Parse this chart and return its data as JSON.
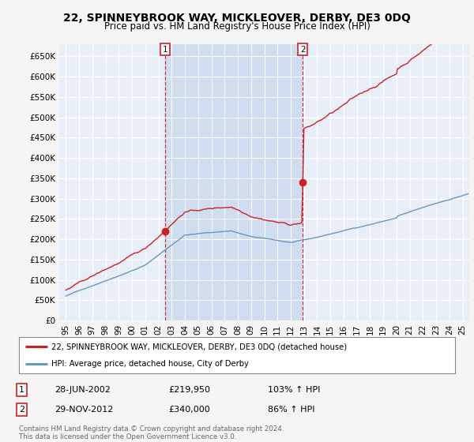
{
  "title": "22, SPINNEYBROOK WAY, MICKLEOVER, DERBY, DE3 0DQ",
  "subtitle": "Price paid vs. HM Land Registry's House Price Index (HPI)",
  "title_fontsize": 10,
  "subtitle_fontsize": 8.5,
  "bg_color": "#f5f5f5",
  "plot_bg_color": "#e8eef8",
  "shade_color": "#d0dcf0",
  "grid_color": "#ffffff",
  "ylim": [
    0,
    680000
  ],
  "yticks": [
    0,
    50000,
    100000,
    150000,
    200000,
    250000,
    300000,
    350000,
    400000,
    450000,
    500000,
    550000,
    600000,
    650000
  ],
  "ytick_labels": [
    "£0",
    "£50K",
    "£100K",
    "£150K",
    "£200K",
    "£250K",
    "£300K",
    "£350K",
    "£400K",
    "£450K",
    "£500K",
    "£550K",
    "£600K",
    "£650K"
  ],
  "sale1_year": 2002.5,
  "sale1_price": 219950,
  "sale2_year": 2012.92,
  "sale2_price": 340000,
  "sale1_date": "28-JUN-2002",
  "sale1_amount": "£219,950",
  "sale1_hpi": "103% ↑ HPI",
  "sale2_date": "29-NOV-2012",
  "sale2_amount": "£340,000",
  "sale2_hpi": "86% ↑ HPI",
  "red_line_color": "#cc2222",
  "blue_line_color": "#6699bb",
  "legend_label_red": "22, SPINNEYBROOK WAY, MICKLEOVER, DERBY, DE3 0DQ (detached house)",
  "legend_label_blue": "HPI: Average price, detached house, City of Derby",
  "footer": "Contains HM Land Registry data © Crown copyright and database right 2024.\nThis data is licensed under the Open Government Licence v3.0.",
  "xmin": 1994.5,
  "xmax": 2025.5
}
